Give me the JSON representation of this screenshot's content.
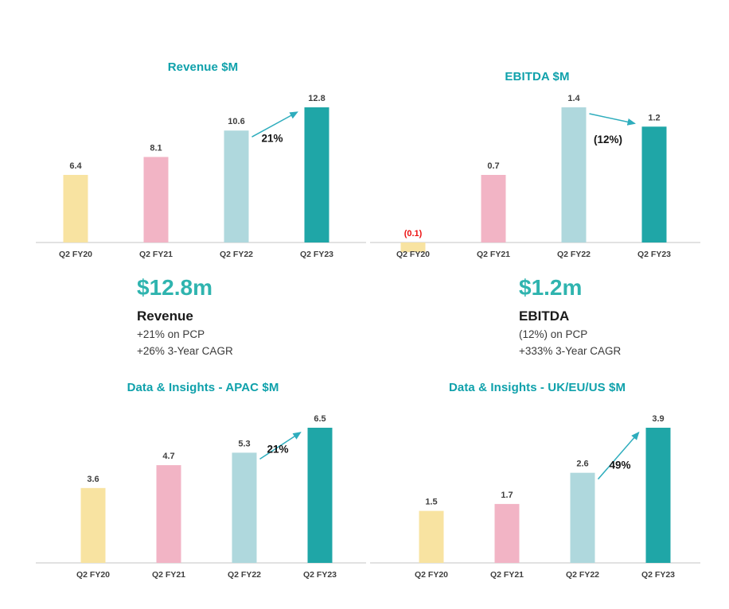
{
  "colors": {
    "bar_fy20": "#F8E3A1",
    "bar_fy21": "#F2B4C5",
    "bar_fy22": "#AFD8DD",
    "bar_fy23": "#1FA6A7",
    "title_teal": "#0FA1AB",
    "kpi_teal": "#2FB4AF",
    "axis_gray": "#D9D9D9",
    "label_dark": "#3F3F3F",
    "negative_red": "#EC1111",
    "arrow_teal": "#2EADBD",
    "annotation_black": "#141414"
  },
  "chart_data": [
    {
      "id": "revenue",
      "type": "bar",
      "title": "Revenue $M",
      "xlabel": "",
      "ylabel": "",
      "grid": false,
      "legend": "none",
      "ylim": [
        0,
        13
      ],
      "categories": [
        "Q2 FY20",
        "Q2 FY21",
        "Q2 FY22",
        "Q2 FY23"
      ],
      "values": [
        6.4,
        8.1,
        10.6,
        12.8
      ],
      "value_labels": [
        "6.4",
        "8.1",
        "10.6",
        "12.8"
      ],
      "annotation": {
        "label": "21%",
        "from_index": 2,
        "to_index": 3
      }
    },
    {
      "id": "ebitda",
      "type": "bar",
      "title": "EBITDA $M",
      "xlabel": "",
      "ylabel": "",
      "grid": false,
      "legend": "none",
      "ylim": [
        -0.2,
        1.5
      ],
      "categories": [
        "Q2 FY20",
        "Q2 FY21",
        "Q2 FY22",
        "Q2 FY23"
      ],
      "values": [
        -0.1,
        0.7,
        1.4,
        1.2
      ],
      "value_labels": [
        "(0.1)",
        "0.7",
        "1.4",
        "1.2"
      ],
      "annotation": {
        "label": "(12%)",
        "from_index": 2,
        "to_index": 3
      }
    },
    {
      "id": "data-insights-apac",
      "type": "bar",
      "title": "Data & Insights - APAC $M",
      "xlabel": "",
      "ylabel": "",
      "grid": false,
      "legend": "none",
      "ylim": [
        0,
        7
      ],
      "categories": [
        "Q2 FY20",
        "Q2 FY21",
        "Q2 FY22",
        "Q2 FY23"
      ],
      "values": [
        3.6,
        4.7,
        5.3,
        6.5
      ],
      "value_labels": [
        "3.6",
        "4.7",
        "5.3",
        "6.5"
      ],
      "annotation": {
        "label": "21%",
        "from_index": 2,
        "to_index": 3
      }
    },
    {
      "id": "data-insights-uk-eu-us",
      "type": "bar",
      "title": "Data & Insights - UK/EU/US $M",
      "xlabel": "",
      "ylabel": "",
      "grid": false,
      "legend": "none",
      "ylim": [
        0,
        4.2
      ],
      "categories": [
        "Q2 FY20",
        "Q2 FY21",
        "Q2 FY22",
        "Q2 FY23"
      ],
      "values": [
        1.5,
        1.7,
        2.6,
        3.9
      ],
      "value_labels": [
        "1.5",
        "1.7",
        "2.6",
        "3.9"
      ],
      "annotation": {
        "label": "49%",
        "from_index": 2,
        "to_index": 3
      }
    }
  ],
  "kpis": [
    {
      "value": "$12.8m",
      "title": "Revenue",
      "line1": "+21% on PCP",
      "line2": "+26% 3-Year CAGR"
    },
    {
      "value": "$1.2m",
      "title": "EBITDA",
      "line1": "(12%) on PCP",
      "line2": "+333% 3-Year CAGR"
    }
  ]
}
